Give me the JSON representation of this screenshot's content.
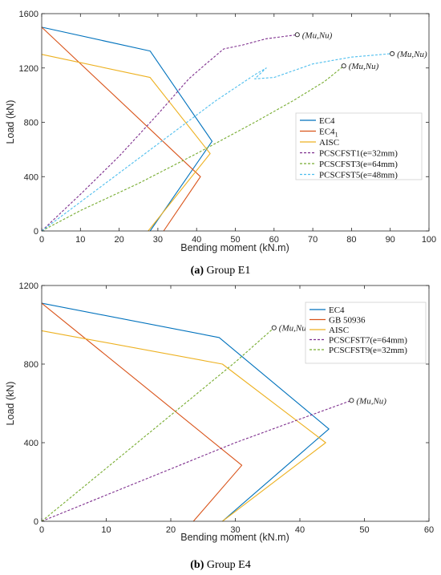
{
  "chart_data": [
    {
      "type": "line",
      "caption_letter": "(a)",
      "caption_text": " Group E1",
      "xlabel": "Bending moment (kN.m)",
      "ylabel": "Load (kN)",
      "xlim": [
        0,
        100
      ],
      "ylim": [
        0,
        1600
      ],
      "xticks": [
        0,
        10,
        20,
        30,
        40,
        50,
        60,
        70,
        80,
        90,
        100
      ],
      "yticks": [
        0,
        400,
        800,
        1200,
        1600
      ],
      "grid": false,
      "legend_position": "center-right",
      "series": [
        {
          "name": "EC4",
          "color": "#0072BD",
          "dash": "",
          "x": [
            0,
            28,
            44,
            28
          ],
          "y": [
            1500,
            1325,
            660,
            0
          ]
        },
        {
          "name": "EC4",
          "name_sub": "1",
          "color": "#D95319",
          "dash": "",
          "x": [
            0,
            41,
            31.5
          ],
          "y": [
            1500,
            400,
            0
          ]
        },
        {
          "name": "AISC",
          "color": "#EDB120",
          "dash": "",
          "x": [
            0,
            28,
            43.5,
            27.5
          ],
          "y": [
            1300,
            1130,
            570,
            0
          ]
        },
        {
          "name": "PCSCFST1(e=32mm)",
          "color": "#7E2F8E",
          "dash": "3,2",
          "x": [
            0,
            10,
            20,
            30,
            38,
            42,
            47,
            52,
            58,
            66
          ],
          "y": [
            0,
            270,
            550,
            860,
            1120,
            1220,
            1340,
            1370,
            1415,
            1445
          ]
        },
        {
          "name": "PCSCFST3(e=64mm)",
          "color": "#77AC30",
          "dash": "3,2",
          "x": [
            0,
            10,
            25,
            40,
            55,
            65,
            73,
            78
          ],
          "y": [
            0,
            150,
            350,
            570,
            800,
            960,
            1100,
            1215
          ]
        },
        {
          "name": "PCSCFST5(e=48mm)",
          "color": "#4DBEEE",
          "dash": "3,2",
          "x": [
            0,
            15,
            30,
            45,
            55,
            58,
            55,
            60,
            70,
            80,
            90
          ],
          "y": [
            0,
            320,
            640,
            960,
            1150,
            1200,
            1120,
            1130,
            1230,
            1280,
            1305
          ]
        }
      ],
      "annotations": [
        {
          "text": "(Mu,Nu)",
          "x": 66,
          "y": 1445
        },
        {
          "text": "(Mu,Nu)",
          "x": 90.5,
          "y": 1305
        },
        {
          "text": "(Mu,Nu)",
          "x": 78,
          "y": 1215
        }
      ]
    },
    {
      "type": "line",
      "caption_letter": "(b)",
      "caption_text": " Group E4",
      "xlabel": "Bending moment (kN.m)",
      "ylabel": "Load (kN)",
      "xlim": [
        0,
        60
      ],
      "ylim": [
        0,
        1200
      ],
      "xticks": [
        0,
        10,
        20,
        30,
        40,
        50,
        60
      ],
      "yticks": [
        0,
        400,
        800,
        1200
      ],
      "grid": false,
      "legend_position": "top-right",
      "series": [
        {
          "name": "EC4",
          "color": "#0072BD",
          "dash": "",
          "x": [
            0,
            27.5,
            44.5,
            28
          ],
          "y": [
            1110,
            935,
            470,
            0
          ]
        },
        {
          "name": "GB 50936",
          "color": "#D95319",
          "dash": "",
          "x": [
            0,
            31,
            23.5
          ],
          "y": [
            1110,
            285,
            0
          ]
        },
        {
          "name": "AISC",
          "color": "#EDB120",
          "dash": "",
          "x": [
            0,
            28,
            44,
            28
          ],
          "y": [
            970,
            800,
            400,
            0
          ]
        },
        {
          "name": "PCSCFST7(e=64mm)",
          "color": "#7E2F8E",
          "dash": "3,2",
          "x": [
            0,
            15,
            30,
            40,
            48
          ],
          "y": [
            0,
            200,
            400,
            520,
            615
          ]
        },
        {
          "name": "PCSCFST9(e=32mm)",
          "color": "#77AC30",
          "dash": "3,2",
          "x": [
            0,
            10,
            20,
            30,
            36
          ],
          "y": [
            0,
            270,
            540,
            810,
            985
          ]
        }
      ],
      "annotations": [
        {
          "text": "(Mu,Nu)",
          "x": 36,
          "y": 985
        },
        {
          "text": "(Mu,Nu)",
          "x": 48,
          "y": 615
        }
      ]
    }
  ]
}
